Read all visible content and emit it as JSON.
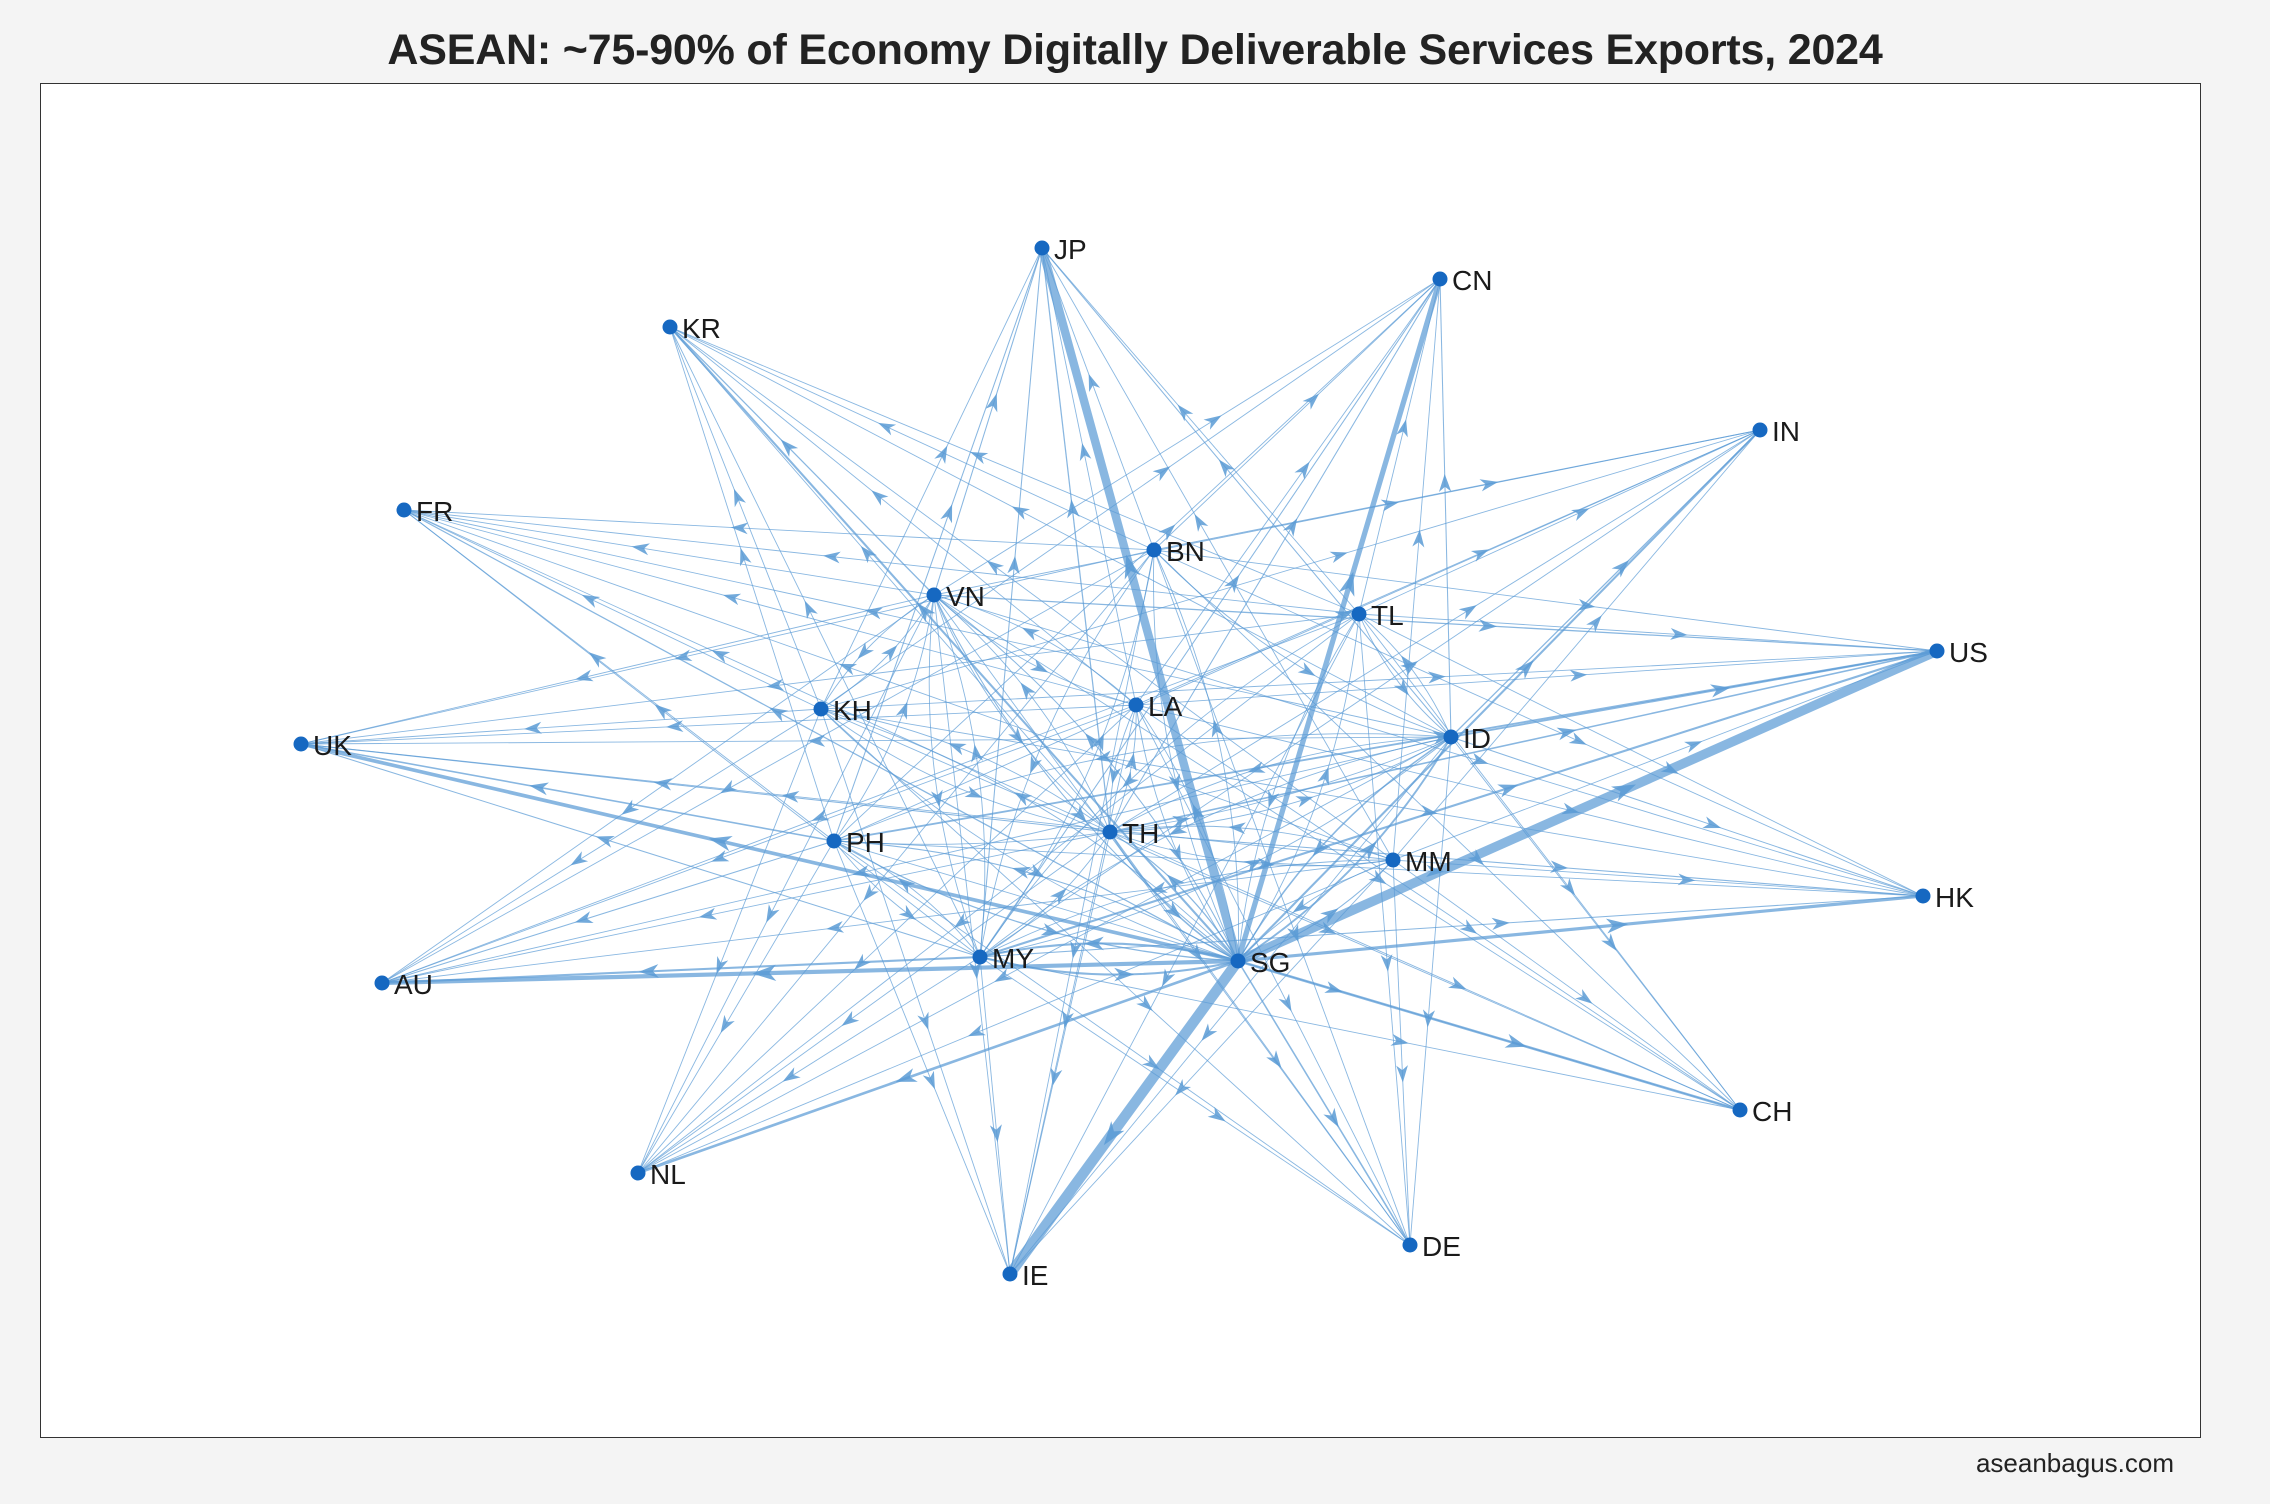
{
  "title": "ASEAN: ~75-90% of Economy Digitally Deliverable Services Exports, 2024",
  "footer": "aseanbagus.com",
  "colors": {
    "node": "#1668c1",
    "edge": "#5b9bd5",
    "label": "#1a1a1a",
    "frame": "#333333",
    "background": "#f4f4f4"
  },
  "chart_data": {
    "type": "network",
    "title": "ASEAN: ~75-90% of Economy Digitally Deliverable Services Exports, 2024",
    "directed": true,
    "nodes": [
      {
        "id": "SG",
        "label": "SG",
        "group": "ASEAN"
      },
      {
        "id": "MY",
        "label": "MY",
        "group": "ASEAN"
      },
      {
        "id": "TH",
        "label": "TH",
        "group": "ASEAN"
      },
      {
        "id": "ID",
        "label": "ID",
        "group": "ASEAN"
      },
      {
        "id": "VN",
        "label": "VN",
        "group": "ASEAN"
      },
      {
        "id": "PH",
        "label": "PH",
        "group": "ASEAN"
      },
      {
        "id": "KH",
        "label": "KH",
        "group": "ASEAN"
      },
      {
        "id": "LA",
        "label": "LA",
        "group": "ASEAN"
      },
      {
        "id": "MM",
        "label": "MM",
        "group": "ASEAN"
      },
      {
        "id": "BN",
        "label": "BN",
        "group": "ASEAN"
      },
      {
        "id": "TL",
        "label": "TL",
        "group": "ASEAN"
      },
      {
        "id": "JP",
        "label": "JP",
        "group": "partner"
      },
      {
        "id": "CN",
        "label": "CN",
        "group": "partner"
      },
      {
        "id": "KR",
        "label": "KR",
        "group": "partner"
      },
      {
        "id": "IN",
        "label": "IN",
        "group": "partner"
      },
      {
        "id": "US",
        "label": "US",
        "group": "partner"
      },
      {
        "id": "HK",
        "label": "HK",
        "group": "partner"
      },
      {
        "id": "CH",
        "label": "CH",
        "group": "partner"
      },
      {
        "id": "DE",
        "label": "DE",
        "group": "partner"
      },
      {
        "id": "IE",
        "label": "IE",
        "group": "partner"
      },
      {
        "id": "NL",
        "label": "NL",
        "group": "partner"
      },
      {
        "id": "AU",
        "label": "AU",
        "group": "partner"
      },
      {
        "id": "UK",
        "label": "UK",
        "group": "partner"
      },
      {
        "id": "FR",
        "label": "FR",
        "group": "partner"
      }
    ],
    "edges": [
      [
        "SG",
        "IE",
        10
      ],
      [
        "SG",
        "US",
        9
      ],
      [
        "SG",
        "JP",
        8
      ],
      [
        "SG",
        "CN",
        5
      ],
      [
        "SG",
        "AU",
        4
      ],
      [
        "SG",
        "UK",
        3.5
      ],
      [
        "SG",
        "HK",
        3
      ],
      [
        "SG",
        "CH",
        2.5
      ],
      [
        "SG",
        "NL",
        2.5
      ],
      [
        "SG",
        "KR",
        2
      ],
      [
        "SG",
        "IN",
        2
      ],
      [
        "SG",
        "DE",
        1.5
      ],
      [
        "SG",
        "FR",
        1.2
      ],
      [
        "MY",
        "US",
        2
      ],
      [
        "MY",
        "AU",
        2
      ],
      [
        "MY",
        "SG",
        2
      ],
      [
        "MY",
        "JP",
        1
      ],
      [
        "MY",
        "CN",
        1
      ],
      [
        "MY",
        "UK",
        1
      ],
      [
        "MY",
        "HK",
        1
      ],
      [
        "MY",
        "KR",
        0.8
      ],
      [
        "MY",
        "IN",
        0.8
      ],
      [
        "MY",
        "IE",
        0.8
      ],
      [
        "MY",
        "NL",
        0.8
      ],
      [
        "MY",
        "DE",
        0.8
      ],
      [
        "MY",
        "CH",
        0.8
      ],
      [
        "MY",
        "FR",
        0.8
      ],
      [
        "TH",
        "US",
        1.5
      ],
      [
        "TH",
        "JP",
        1.2
      ],
      [
        "TH",
        "CN",
        1
      ],
      [
        "TH",
        "SG",
        1.5
      ],
      [
        "TH",
        "UK",
        1
      ],
      [
        "TH",
        "HK",
        1
      ],
      [
        "TH",
        "AU",
        0.8
      ],
      [
        "TH",
        "KR",
        0.8
      ],
      [
        "TH",
        "IN",
        0.8
      ],
      [
        "TH",
        "IE",
        0.8
      ],
      [
        "TH",
        "NL",
        0.8
      ],
      [
        "TH",
        "DE",
        0.8
      ],
      [
        "TH",
        "CH",
        0.8
      ],
      [
        "TH",
        "FR",
        0.8
      ],
      [
        "ID",
        "US",
        1.8
      ],
      [
        "ID",
        "SG",
        1.5
      ],
      [
        "ID",
        "IN",
        1.2
      ],
      [
        "ID",
        "JP",
        1
      ],
      [
        "ID",
        "CN",
        1
      ],
      [
        "ID",
        "HK",
        1
      ],
      [
        "ID",
        "AU",
        0.8
      ],
      [
        "ID",
        "UK",
        0.8
      ],
      [
        "ID",
        "KR",
        0.8
      ],
      [
        "ID",
        "IE",
        0.8
      ],
      [
        "ID",
        "NL",
        0.8
      ],
      [
        "ID",
        "DE",
        0.8
      ],
      [
        "ID",
        "CH",
        0.8
      ],
      [
        "ID",
        "FR",
        0.8
      ],
      [
        "PH",
        "US",
        1.8
      ],
      [
        "PH",
        "UK",
        1.5
      ],
      [
        "PH",
        "AU",
        1
      ],
      [
        "PH",
        "JP",
        1
      ],
      [
        "PH",
        "SG",
        1.2
      ],
      [
        "PH",
        "CN",
        0.8
      ],
      [
        "PH",
        "HK",
        0.8
      ],
      [
        "PH",
        "KR",
        0.8
      ],
      [
        "PH",
        "IN",
        0.8
      ],
      [
        "PH",
        "IE",
        0.8
      ],
      [
        "PH",
        "NL",
        0.8
      ],
      [
        "PH",
        "DE",
        0.8
      ],
      [
        "PH",
        "CH",
        0.8
      ],
      [
        "PH",
        "FR",
        0.8
      ],
      [
        "VN",
        "US",
        1.2
      ],
      [
        "VN",
        "JP",
        1
      ],
      [
        "VN",
        "KR",
        1.2
      ],
      [
        "VN",
        "CN",
        0.8
      ],
      [
        "VN",
        "SG",
        1
      ],
      [
        "VN",
        "HK",
        0.8
      ],
      [
        "VN",
        "AU",
        0.8
      ],
      [
        "VN",
        "UK",
        0.8
      ],
      [
        "VN",
        "IN",
        0.8
      ],
      [
        "VN",
        "IE",
        0.8
      ],
      [
        "VN",
        "NL",
        0.8
      ],
      [
        "VN",
        "DE",
        0.8
      ],
      [
        "VN",
        "CH",
        0.8
      ],
      [
        "VN",
        "FR",
        0.8
      ],
      [
        "KH",
        "US",
        0.8
      ],
      [
        "KH",
        "JP",
        0.8
      ],
      [
        "KH",
        "CN",
        0.8
      ],
      [
        "KH",
        "KR",
        0.8
      ],
      [
        "KH",
        "SG",
        0.8
      ],
      [
        "KH",
        "UK",
        0.8
      ],
      [
        "KH",
        "FR",
        0.8
      ],
      [
        "KH",
        "AU",
        0.6
      ],
      [
        "KH",
        "HK",
        0.6
      ],
      [
        "KH",
        "IN",
        0.6
      ],
      [
        "KH",
        "IE",
        0.6
      ],
      [
        "KH",
        "NL",
        0.6
      ],
      [
        "KH",
        "DE",
        0.6
      ],
      [
        "KH",
        "CH",
        0.6
      ],
      [
        "LA",
        "US",
        0.6
      ],
      [
        "LA",
        "JP",
        0.6
      ],
      [
        "LA",
        "CN",
        0.8
      ],
      [
        "LA",
        "KR",
        0.6
      ],
      [
        "LA",
        "SG",
        0.6
      ],
      [
        "LA",
        "UK",
        0.6
      ],
      [
        "LA",
        "FR",
        0.6
      ],
      [
        "LA",
        "AU",
        0.6
      ],
      [
        "LA",
        "HK",
        0.6
      ],
      [
        "LA",
        "IN",
        0.6
      ],
      [
        "LA",
        "IE",
        0.6
      ],
      [
        "LA",
        "NL",
        0.6
      ],
      [
        "LA",
        "DE",
        0.6
      ],
      [
        "LA",
        "CH",
        0.6
      ],
      [
        "MM",
        "US",
        0.6
      ],
      [
        "MM",
        "JP",
        0.6
      ],
      [
        "MM",
        "CN",
        0.8
      ],
      [
        "MM",
        "KR",
        0.6
      ],
      [
        "MM",
        "SG",
        0.8
      ],
      [
        "MM",
        "UK",
        0.6
      ],
      [
        "MM",
        "FR",
        0.6
      ],
      [
        "MM",
        "AU",
        0.6
      ],
      [
        "MM",
        "HK",
        0.6
      ],
      [
        "MM",
        "IN",
        0.6
      ],
      [
        "MM",
        "IE",
        0.6
      ],
      [
        "MM",
        "NL",
        0.6
      ],
      [
        "MM",
        "DE",
        0.6
      ],
      [
        "MM",
        "CH",
        0.6
      ],
      [
        "BN",
        "US",
        0.6
      ],
      [
        "BN",
        "JP",
        0.6
      ],
      [
        "BN",
        "CN",
        0.6
      ],
      [
        "BN",
        "KR",
        0.6
      ],
      [
        "BN",
        "SG",
        0.6
      ],
      [
        "BN",
        "UK",
        0.6
      ],
      [
        "BN",
        "FR",
        0.6
      ],
      [
        "BN",
        "AU",
        0.6
      ],
      [
        "BN",
        "HK",
        0.6
      ],
      [
        "BN",
        "IN",
        1
      ],
      [
        "BN",
        "IE",
        0.6
      ],
      [
        "BN",
        "NL",
        0.6
      ],
      [
        "BN",
        "DE",
        0.6
      ],
      [
        "BN",
        "CH",
        0.6
      ],
      [
        "TL",
        "US",
        0.6
      ],
      [
        "TL",
        "JP",
        0.6
      ],
      [
        "TL",
        "CN",
        0.6
      ],
      [
        "TL",
        "KR",
        0.6
      ],
      [
        "TL",
        "SG",
        0.6
      ],
      [
        "TL",
        "UK",
        0.6
      ],
      [
        "TL",
        "FR",
        0.6
      ],
      [
        "TL",
        "AU",
        0.6
      ],
      [
        "TL",
        "HK",
        0.6
      ],
      [
        "TL",
        "IN",
        0.8
      ],
      [
        "TL",
        "IE",
        0.6
      ],
      [
        "TL",
        "NL",
        0.6
      ],
      [
        "TL",
        "DE",
        0.6
      ],
      [
        "TL",
        "CH",
        0.6
      ],
      [
        "SG",
        "MY",
        2
      ],
      [
        "SG",
        "TH",
        1.2
      ],
      [
        "SG",
        "ID",
        1.8
      ],
      [
        "SG",
        "VN",
        1
      ],
      [
        "SG",
        "PH",
        1
      ],
      [
        "SG",
        "KH",
        0.8
      ],
      [
        "SG",
        "LA",
        0.8
      ],
      [
        "SG",
        "MM",
        1
      ],
      [
        "SG",
        "BN",
        0.8
      ],
      [
        "SG",
        "TL",
        0.8
      ],
      [
        "MY",
        "TH",
        0.8
      ],
      [
        "MY",
        "ID",
        0.8
      ],
      [
        "MY",
        "VN",
        0.8
      ],
      [
        "MY",
        "PH",
        0.8
      ],
      [
        "MY",
        "BN",
        0.6
      ],
      [
        "TH",
        "VN",
        0.8
      ],
      [
        "TH",
        "KH",
        0.8
      ],
      [
        "TH",
        "LA",
        0.8
      ],
      [
        "TH",
        "MM",
        0.8
      ],
      [
        "TH",
        "ID",
        0.6
      ],
      [
        "ID",
        "MY",
        0.8
      ],
      [
        "ID",
        "TL",
        0.6
      ],
      [
        "ID",
        "PH",
        0.6
      ],
      [
        "ID",
        "TH",
        0.6
      ],
      [
        "VN",
        "KH",
        0.8
      ],
      [
        "VN",
        "LA",
        0.8
      ],
      [
        "VN",
        "TH",
        0.6
      ],
      [
        "VN",
        "MY",
        0.6
      ],
      [
        "PH",
        "MY",
        0.6
      ],
      [
        "PH",
        "ID",
        0.6
      ],
      [
        "PH",
        "VN",
        0.6
      ],
      [
        "KH",
        "VN",
        0.6
      ],
      [
        "KH",
        "TH",
        0.6
      ],
      [
        "LA",
        "TH",
        0.6
      ],
      [
        "LA",
        "VN",
        0.6
      ],
      [
        "MM",
        "TH",
        0.6
      ],
      [
        "MM",
        "MY",
        0.6
      ],
      [
        "BN",
        "MY",
        0.6
      ],
      [
        "BN",
        "ID",
        0.6
      ],
      [
        "TL",
        "ID",
        0.6
      ],
      [
        "TL",
        "MY",
        0.6
      ]
    ]
  }
}
